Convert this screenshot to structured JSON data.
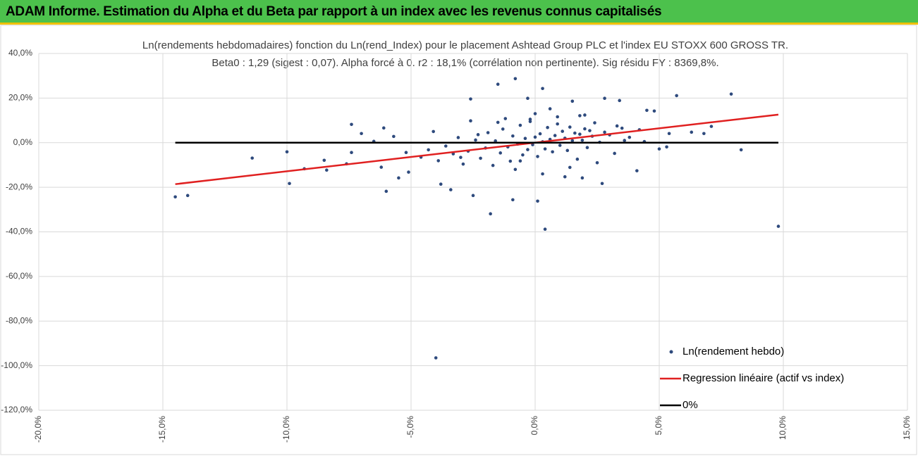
{
  "header": {
    "title": "ADAM Informe. Estimation du Alpha et du Beta par rapport à un index avec les revenus connus capitalisés"
  },
  "chart_data": {
    "type": "scatter",
    "title": "Ln(rendements hebdomadaires) fonction du Ln(rend_Index) pour le placement Ashtead Group PLC et l'index EU STOXX 600 GROSS TR.",
    "subtitle": "Beta0 : 1,29 (sigest : 0,07). Alpha forcé à 0. r2 : 18,1% (corrélation non pertinente). Sig résidu FY : 8369,8%.",
    "xlim": [
      -20,
      15
    ],
    "xticks": [
      {
        "value": -20,
        "label": "-20,0%"
      },
      {
        "value": -15,
        "label": "-15,0%"
      },
      {
        "value": -10,
        "label": "-10,0%"
      },
      {
        "value": -5,
        "label": "-5,0%"
      },
      {
        "value": 0,
        "label": "0,0%"
      },
      {
        "value": 5,
        "label": "5,0%"
      },
      {
        "value": 10,
        "label": "10,0%"
      },
      {
        "value": 15,
        "label": "15,0%"
      }
    ],
    "ylim": [
      -120,
      40
    ],
    "yticks": [
      {
        "value": -120,
        "label": "-120,0%"
      },
      {
        "value": -100,
        "label": "-100,0%"
      },
      {
        "value": -80,
        "label": "-80,0%"
      },
      {
        "value": -60,
        "label": "-60,0%"
      },
      {
        "value": -40,
        "label": "-40,0%"
      },
      {
        "value": -20,
        "label": "-20,0%"
      },
      {
        "value": 0,
        "label": "0,0%"
      },
      {
        "value": 20,
        "label": "20,0%"
      },
      {
        "value": 40,
        "label": "40,0%"
      }
    ],
    "grid": true,
    "legend": "lower right",
    "series": [
      {
        "name": "Ln(rendement hebdo)",
        "kind": "points",
        "color": "#2e4a7d",
        "x": [
          -14.5,
          -14.0,
          -11.4,
          -10.0,
          -9.9,
          -9.3,
          -8.5,
          -8.4,
          -7.6,
          -7.4,
          -7.4,
          -7.0,
          -6.5,
          -6.1,
          -6.0,
          -6.2,
          -5.7,
          -5.5,
          -5.2,
          -5.1,
          -4.1,
          -4.0,
          -3.4,
          -3.8,
          -2.6,
          -2.5,
          -1.8,
          -1.5,
          -0.9,
          -0.8,
          0.1,
          0.3,
          0.4,
          -0.3,
          1.5,
          1.9,
          2.7,
          2.8,
          3.4,
          4.1,
          5.0,
          5.3,
          5.7,
          7.1,
          7.9,
          8.3,
          9.8,
          6.8,
          6.3,
          5.4,
          4.5,
          4.8,
          -4.6,
          -4.3,
          -3.9,
          -3.6,
          -3.3,
          -3.1,
          -2.9,
          -2.7,
          -2.4,
          -2.2,
          -2.0,
          -1.9,
          -1.7,
          -1.6,
          -1.4,
          -1.3,
          -1.1,
          -1.0,
          -0.9,
          -0.7,
          -0.6,
          -0.5,
          -0.4,
          -0.3,
          -0.2,
          -0.1,
          0.0,
          0.1,
          0.2,
          0.3,
          0.4,
          0.5,
          0.6,
          0.7,
          0.8,
          0.9,
          1.0,
          1.1,
          1.2,
          1.3,
          1.4,
          1.5,
          1.6,
          1.7,
          1.8,
          1.9,
          2.0,
          2.1,
          2.2,
          2.3,
          2.4,
          2.6,
          2.8,
          3.0,
          3.2,
          3.5,
          3.8,
          4.2,
          -2.3,
          -1.5,
          -0.8,
          -0.2,
          0.3,
          0.9,
          1.4,
          2.0,
          2.5,
          -1.2,
          -0.6,
          0.0,
          0.6,
          1.2,
          1.8,
          -3.0,
          -2.6,
          3.3,
          3.6,
          4.4
        ],
        "values": [
          -24.3,
          -23.7,
          -6.9,
          -4.1,
          -18.3,
          -11.7,
          -7.9,
          -12.3,
          -9.5,
          8.2,
          -4.4,
          4.1,
          0.6,
          6.6,
          -21.8,
          -11.0,
          2.8,
          -15.8,
          -4.4,
          -13.2,
          5.0,
          -96.5,
          -21.1,
          -18.6,
          19.6,
          -23.7,
          -31.9,
          26.2,
          -25.6,
          28.7,
          -26.2,
          24.3,
          -38.8,
          19.9,
          18.6,
          -15.8,
          -18.3,
          19.9,
          18.9,
          -12.6,
          -2.8,
          -1.9,
          21.1,
          7.3,
          21.8,
          -3.2,
          -37.5,
          4.1,
          4.7,
          4.1,
          14.5,
          14.2,
          -6.5,
          -3.2,
          -8.1,
          -1.5,
          -5.0,
          2.3,
          -9.6,
          -3.8,
          1.2,
          -7.0,
          -2.4,
          4.5,
          -10.2,
          0.8,
          -4.6,
          6.1,
          -1.9,
          -8.3,
          3.0,
          -0.6,
          7.8,
          -5.5,
          1.9,
          -3.1,
          9.5,
          -0.9,
          2.5,
          -6.2,
          4.0,
          0.4,
          -2.8,
          6.8,
          1.5,
          -4.1,
          3.2,
          8.4,
          -1.2,
          5.1,
          2.0,
          -3.5,
          7.0,
          0.9,
          4.3,
          -7.4,
          3.8,
          1.1,
          6.2,
          -2.2,
          5.4,
          2.9,
          8.9,
          0.2,
          4.7,
          3.5,
          -4.8,
          6.5,
          2.4,
          5.8,
          3.6,
          9.1,
          -12.0,
          10.5,
          -14.0,
          11.6,
          -11.1,
          12.4,
          -9.0,
          10.8,
          -8.2,
          13.0,
          15.2,
          -15.3,
          12.1,
          -6.6,
          9.8,
          7.5,
          1.0,
          0.5
        ]
      },
      {
        "name": "Regression linéaire (actif vs index)",
        "kind": "line",
        "color": "#e02020",
        "x": [
          -14.5,
          9.8
        ],
        "values": [
          -18.6,
          12.6
        ]
      },
      {
        "name": "0%",
        "kind": "line",
        "color": "#000000",
        "x": [
          -14.5,
          9.8
        ],
        "values": [
          0,
          0
        ]
      }
    ]
  }
}
